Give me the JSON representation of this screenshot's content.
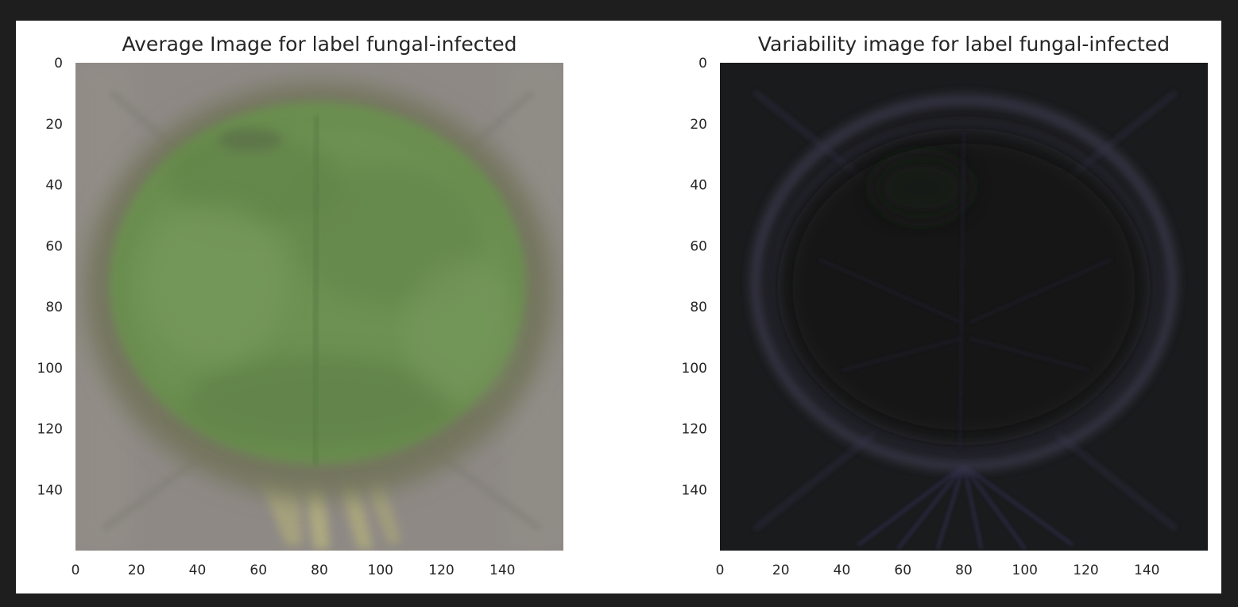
{
  "chart_data": [
    {
      "type": "heatmap",
      "title": "Average Image for label fungal-infected",
      "xlim": [
        0,
        160
      ],
      "ylim": [
        160,
        0
      ],
      "xticks": [
        0,
        20,
        40,
        60,
        80,
        100,
        120,
        140
      ],
      "yticks": [
        0,
        20,
        40,
        60,
        80,
        100,
        120,
        140
      ],
      "grid": false,
      "colors": {
        "background": "#8e8985",
        "leaf": "#6b8e50",
        "leaf_dark": "#5e7f45",
        "edge": "#75765e",
        "stem": "#b3b07e"
      }
    },
    {
      "type": "heatmap",
      "title": "Variability image for label fungal-infected",
      "xlim": [
        0,
        160
      ],
      "ylim": [
        160,
        0
      ],
      "xticks": [
        0,
        20,
        40,
        60,
        80,
        100,
        120,
        140
      ],
      "yticks": [
        0,
        20,
        40,
        60,
        80,
        100,
        120,
        140
      ],
      "grid": false,
      "colors": {
        "background": "#1a1b1d",
        "interior": "#131217",
        "outline": "#3c3a4d",
        "streak": "#2e2c44"
      }
    }
  ]
}
